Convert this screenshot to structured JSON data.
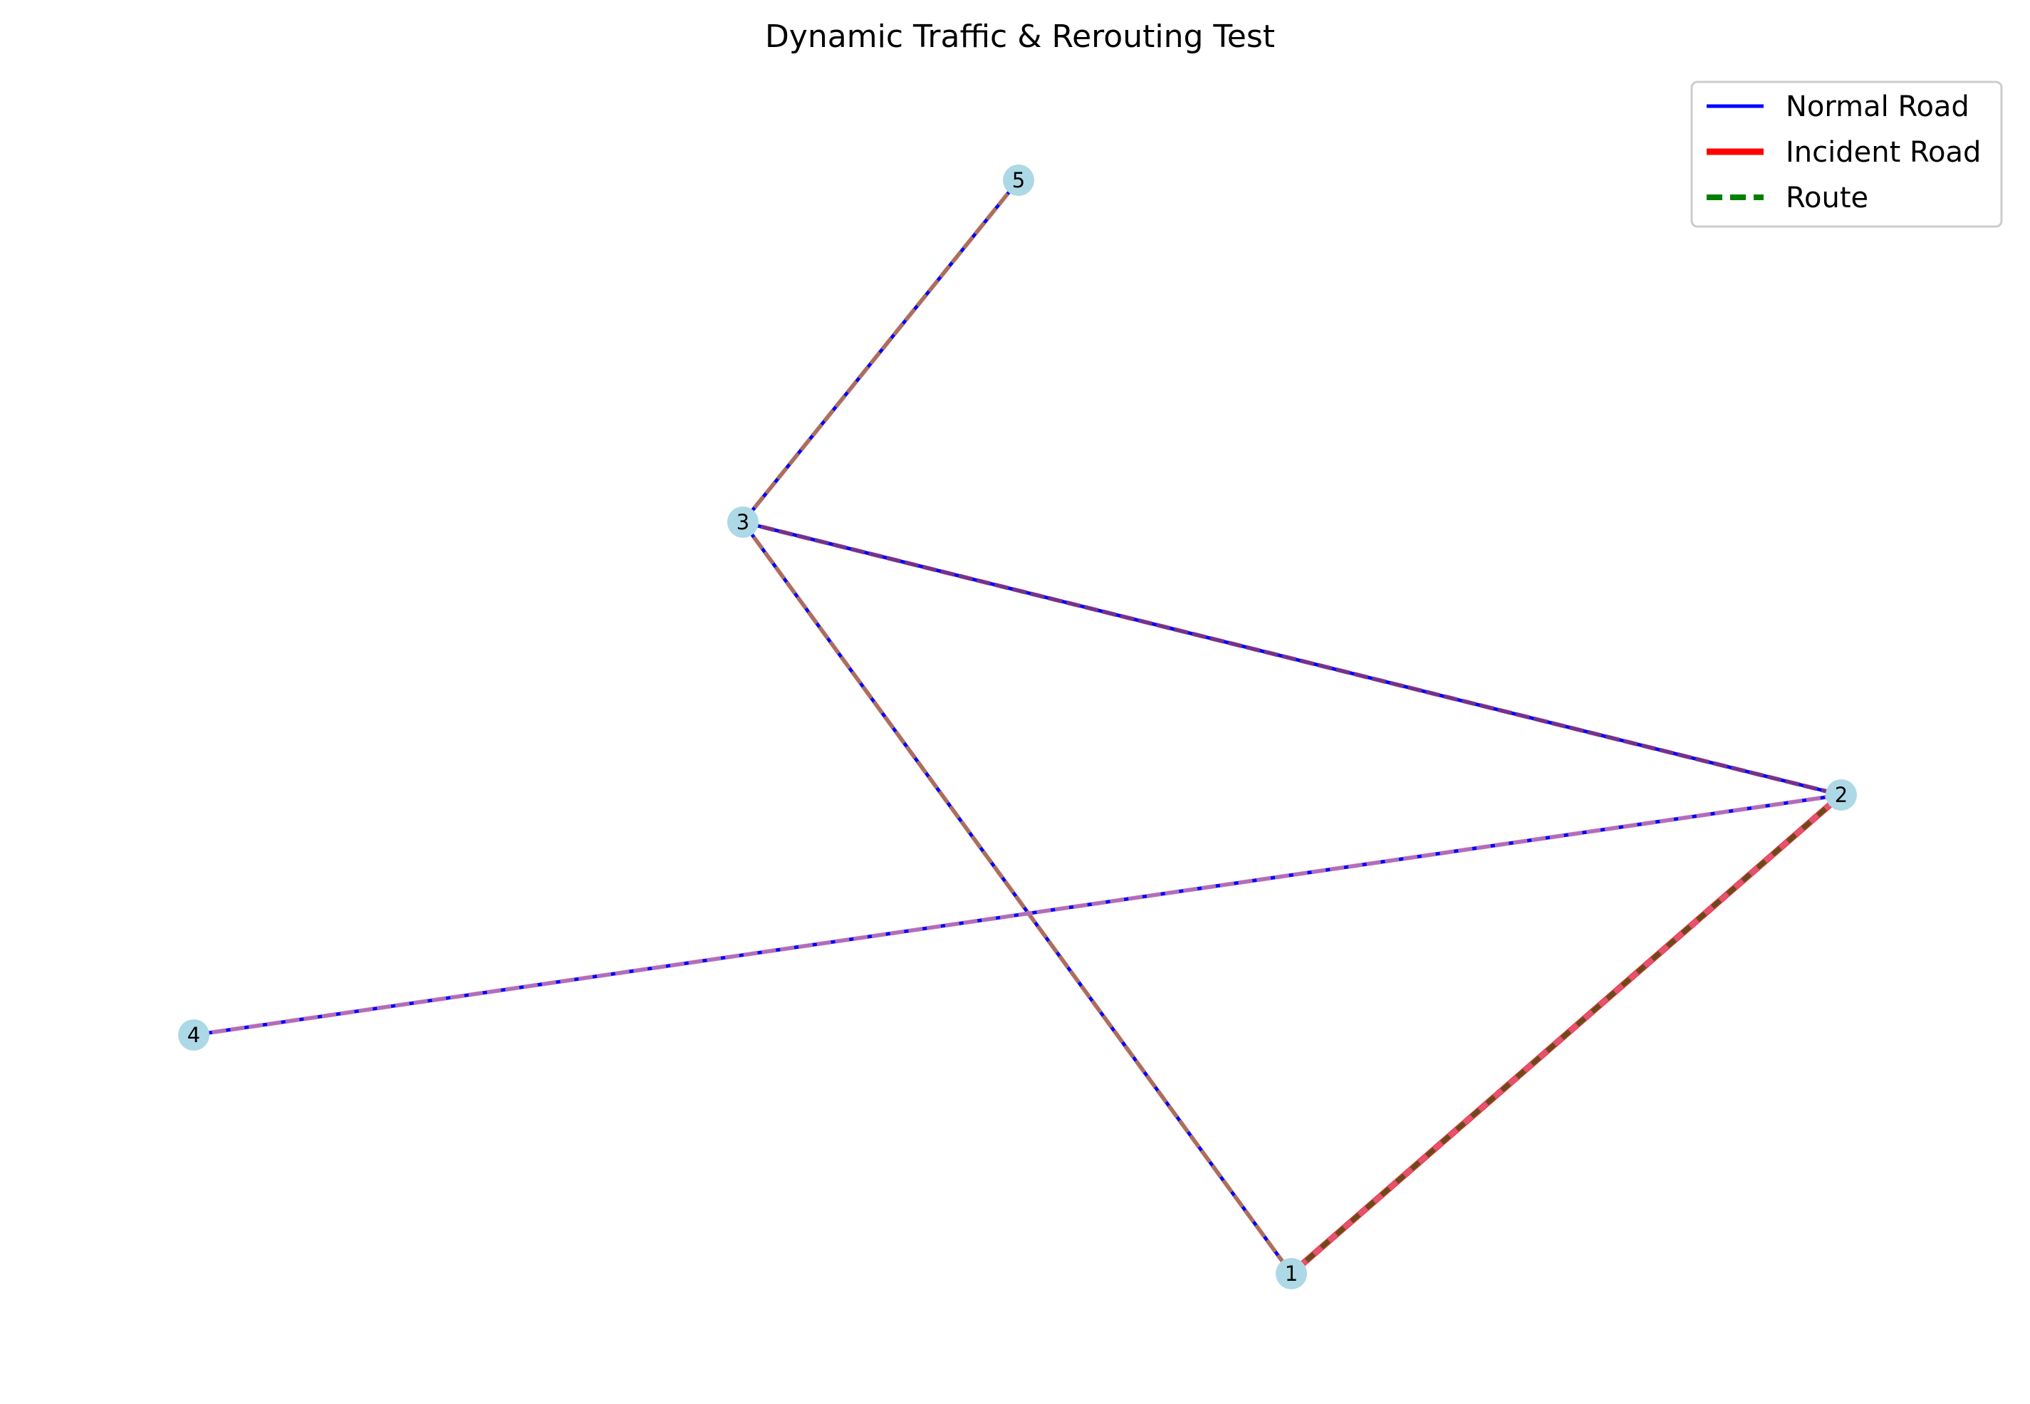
{
  "title": "Dynamic Traffic & Rerouting Test",
  "colors": {
    "normal": "#0000ff",
    "incident": "#ff0000",
    "route": "#008000",
    "node_fill": "#add8e6",
    "edge_overlay_a": "#c8804a",
    "edge_overlay_b": "#8a3a7a",
    "edge_overlay_c": "#d080b0",
    "edge_overlay_d": "#e06080",
    "edge_overlay_e": "#6b4a1a"
  },
  "legend": {
    "normal_label": "Normal Road",
    "incident_label": "Incident Road",
    "route_label": "Route"
  },
  "nodes": [
    {
      "id": "1",
      "label": "1"
    },
    {
      "id": "2",
      "label": "2"
    },
    {
      "id": "3",
      "label": "3"
    },
    {
      "id": "4",
      "label": "4"
    },
    {
      "id": "5",
      "label": "5"
    }
  ],
  "edges": [
    {
      "source": "3",
      "target": "5",
      "kind": "normal",
      "overlay": "edge_overlay_a"
    },
    {
      "source": "3",
      "target": "2",
      "kind": "normal",
      "overlay": "edge_overlay_b"
    },
    {
      "source": "3",
      "target": "1",
      "kind": "normal",
      "overlay": "edge_overlay_a"
    },
    {
      "source": "4",
      "target": "2",
      "kind": "normal",
      "overlay": "edge_overlay_c"
    },
    {
      "source": "1",
      "target": "2",
      "kind": "incident",
      "overlay": "edge_overlay_d"
    }
  ],
  "route": [
    {
      "source": "1",
      "target": "2"
    }
  ]
}
